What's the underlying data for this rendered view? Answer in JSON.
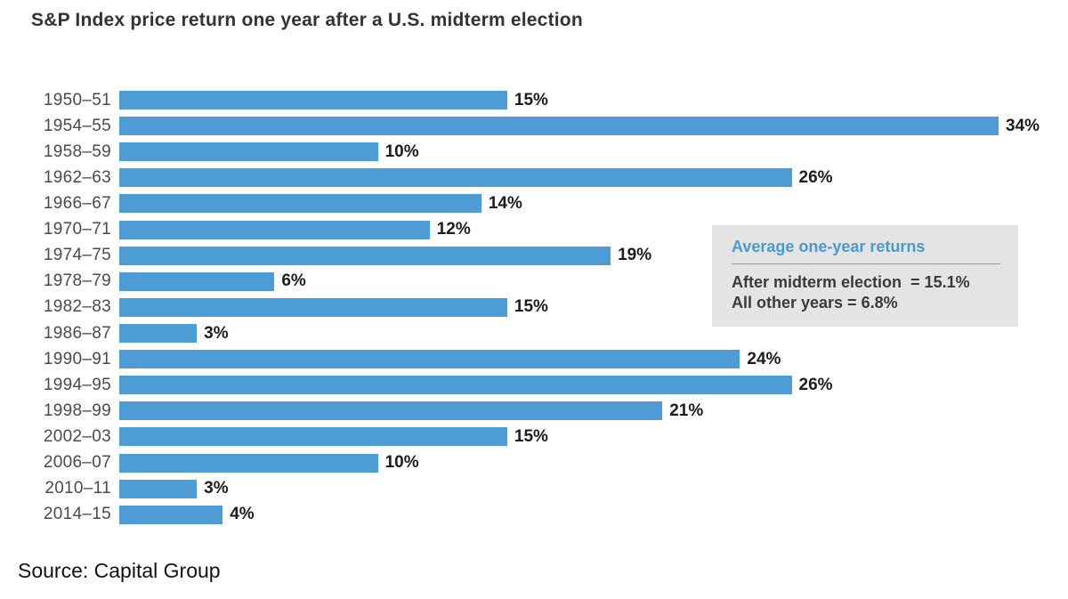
{
  "page": {
    "source": "Source: Capital Group"
  },
  "chart_data": {
    "type": "bar",
    "orientation": "horizontal",
    "title": "S&P Index price return one year after a U.S. midterm election",
    "categories": [
      "1950–51",
      "1954–55",
      "1958–59",
      "1962–63",
      "1966–67",
      "1970–71",
      "1974–75",
      "1978–79",
      "1982–83",
      "1986–87",
      "1990–91",
      "1994–95",
      "1998–99",
      "2002–03",
      "2006–07",
      "2010–11",
      "2014–15"
    ],
    "values": [
      15,
      34,
      10,
      26,
      14,
      12,
      19,
      6,
      15,
      3,
      24,
      26,
      21,
      15,
      10,
      3,
      4
    ],
    "value_suffix": "%",
    "xlim": [
      0,
      34
    ],
    "grid": false,
    "legend": "none",
    "bar_color": "#4d9cd5",
    "annotation": {
      "title": "Average one-year returns",
      "line1": "After midterm election  = 15.1%",
      "line2": "All other years = 6.8%"
    }
  },
  "colors": {
    "bar": "#4d9cd5",
    "callout_bg": "#e4e4e3",
    "callout_title": "#4a9ad2",
    "callout_text": "#3a3a3a",
    "year_label": "#4a4a4a",
    "value_label": "#1c1c1c",
    "title": "#333333"
  }
}
